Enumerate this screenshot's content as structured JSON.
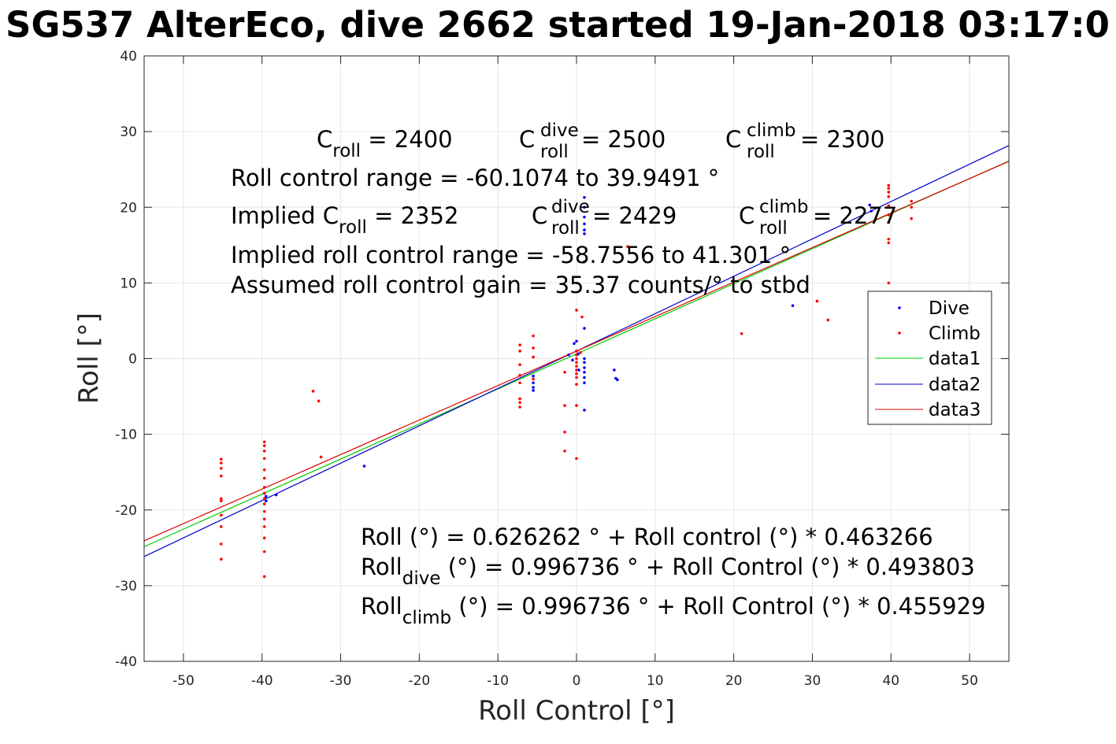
{
  "title": "SG537 AlterEco, dive 2662 started 19-Jan-2018 03:17:0",
  "colors": {
    "dive": "#0000ff",
    "climb": "#ff0000",
    "data1": "#00cc00",
    "data2": "#0000cc",
    "data3": "#dd0000",
    "grid": "#e6e6e6",
    "axis": "#262626"
  },
  "annotations": {
    "c_roll": {
      "C": "C",
      "sub": "roll",
      "val": " = 2400"
    },
    "c_roll_dive": {
      "C": "C",
      "sup": "dive",
      "sub": "roll",
      "val": " = 2500"
    },
    "c_roll_climb": {
      "C": "C",
      "sup": "climb",
      "sub": "roll",
      "val": " = 2300"
    },
    "roll_control_range": "Roll control range = -60.1074 to 39.9491 °",
    "implied_c_roll": {
      "pre": "Implied C",
      "sub": "roll",
      "val": " = 2352"
    },
    "implied_c_roll_dive": {
      "C": "C",
      "sup": "dive",
      "sub": "roll",
      "val": " = 2429"
    },
    "implied_c_roll_climb": {
      "C": "C",
      "sup": "climb",
      "sub": "roll",
      "val": " = 2277"
    },
    "implied_range": "Implied roll control range = -58.7556 to 41.301 °",
    "gain": "Assumed roll control gain = 35.37 counts/° to stbd",
    "fit_all": "Roll (°) = 0.626262 ° + Roll control (°) * 0.463266",
    "fit_dive": {
      "pre": "Roll",
      "sub": "dive",
      "post": " (°) = 0.996736 ° + Roll Control (°) * 0.493803"
    },
    "fit_climb": {
      "pre": "Roll",
      "sub": "climb",
      "post": " (°) = 0.996736 ° + Roll Control (°) * 0.455929"
    }
  },
  "chart_data": {
    "type": "scatter",
    "title": "SG537 AlterEco, dive 2662 started 19-Jan-2018 03:17:0",
    "xlabel": "Roll Control [°]",
    "ylabel": "Roll [°]",
    "xlim": [
      -55,
      55
    ],
    "ylim": [
      -40,
      40
    ],
    "xticks": [
      -50,
      -40,
      -30,
      -20,
      -10,
      0,
      10,
      20,
      30,
      40,
      50
    ],
    "yticks": [
      -40,
      -30,
      -20,
      -10,
      0,
      10,
      20,
      30,
      40
    ],
    "grid": true,
    "legend_position": "right",
    "series": [
      {
        "name": "Dive",
        "kind": "points",
        "color": "#0000ff",
        "points": [
          [
            -39.5,
            -18.2
          ],
          [
            -39.5,
            -18.8
          ],
          [
            -38.2,
            -18.0
          ],
          [
            -27.0,
            -14.2
          ],
          [
            -5.5,
            -2.3
          ],
          [
            -5.5,
            -3.2
          ],
          [
            -5.5,
            -3.8
          ],
          [
            -5.5,
            -4.2
          ],
          [
            -1.0,
            0.5
          ],
          [
            -0.5,
            -0.2
          ],
          [
            -0.3,
            2.0
          ],
          [
            0.0,
            2.3
          ],
          [
            0.2,
            0.6
          ],
          [
            0.3,
            -1.5
          ],
          [
            1.0,
            21.3
          ],
          [
            1.0,
            20.0
          ],
          [
            1.0,
            18.7
          ],
          [
            1.0,
            17.8
          ],
          [
            1.0,
            17.0
          ],
          [
            1.0,
            16.5
          ],
          [
            1.0,
            12.8
          ],
          [
            1.0,
            4.0
          ],
          [
            1.0,
            0.0
          ],
          [
            1.0,
            -0.5
          ],
          [
            1.0,
            -1.2
          ],
          [
            1.0,
            -1.8
          ],
          [
            1.0,
            -2.5
          ],
          [
            1.0,
            -3.2
          ],
          [
            1.0,
            -6.8
          ],
          [
            4.8,
            -1.5
          ],
          [
            5.0,
            -2.6
          ],
          [
            5.2,
            -2.8
          ],
          [
            27.5,
            7.0
          ],
          [
            37.3,
            20.3
          ],
          [
            37.5,
            19.5
          ]
        ]
      },
      {
        "name": "Climb",
        "kind": "points",
        "color": "#ff0000",
        "points": [
          [
            -45.2,
            -13.3
          ],
          [
            -45.2,
            -13.8
          ],
          [
            -45.2,
            -14.5
          ],
          [
            -45.2,
            -15.5
          ],
          [
            -45.2,
            -18.5
          ],
          [
            -45.2,
            -18.8
          ],
          [
            -45.2,
            -20.7
          ],
          [
            -45.2,
            -22.2
          ],
          [
            -45.2,
            -24.5
          ],
          [
            -45.2,
            -26.5
          ],
          [
            -39.7,
            -11.0
          ],
          [
            -39.7,
            -11.5
          ],
          [
            -39.7,
            -12.2
          ],
          [
            -39.7,
            -13.2
          ],
          [
            -39.7,
            -14.7
          ],
          [
            -39.7,
            -15.8
          ],
          [
            -39.7,
            -17.0
          ],
          [
            -39.7,
            -17.8
          ],
          [
            -39.7,
            -18.5
          ],
          [
            -39.7,
            -19.2
          ],
          [
            -39.7,
            -20.2
          ],
          [
            -39.7,
            -21.2
          ],
          [
            -39.7,
            -22.2
          ],
          [
            -39.7,
            -23.7
          ],
          [
            -39.7,
            -25.5
          ],
          [
            -39.7,
            -28.8
          ],
          [
            -33.5,
            -4.3
          ],
          [
            -32.8,
            -5.6
          ],
          [
            -32.5,
            -13.0
          ],
          [
            -7.2,
            1.8
          ],
          [
            -7.2,
            1.0
          ],
          [
            -7.2,
            -0.8
          ],
          [
            -7.2,
            -2.2
          ],
          [
            -7.2,
            -3.2
          ],
          [
            -7.2,
            -5.3
          ],
          [
            -7.2,
            -5.8
          ],
          [
            -7.2,
            -6.4
          ],
          [
            -5.5,
            3.0
          ],
          [
            -5.5,
            1.4
          ],
          [
            -5.5,
            0.2
          ],
          [
            -5.5,
            -2.7
          ],
          [
            -1.5,
            -1.8
          ],
          [
            -1.5,
            -6.2
          ],
          [
            -1.5,
            -9.7
          ],
          [
            -1.5,
            -12.2
          ],
          [
            0.0,
            6.4
          ],
          [
            0.0,
            1.0
          ],
          [
            0.0,
            0.5
          ],
          [
            0.0,
            0.0
          ],
          [
            0.0,
            -0.5
          ],
          [
            0.0,
            -1.0
          ],
          [
            0.0,
            -1.5
          ],
          [
            0.0,
            -2.0
          ],
          [
            0.0,
            -2.5
          ],
          [
            0.0,
            -3.4
          ],
          [
            0.0,
            -6.2
          ],
          [
            0.0,
            -13.2
          ],
          [
            0.7,
            5.5
          ],
          [
            0.5,
            0.8
          ],
          [
            6.5,
            14.8
          ],
          [
            21.0,
            3.3
          ],
          [
            30.6,
            7.6
          ],
          [
            32.0,
            5.1
          ],
          [
            39.7,
            22.9
          ],
          [
            39.7,
            22.5
          ],
          [
            39.7,
            22.0
          ],
          [
            39.7,
            21.4
          ],
          [
            39.7,
            20.2
          ],
          [
            39.7,
            19.0
          ],
          [
            39.7,
            18.0
          ],
          [
            39.7,
            15.8
          ],
          [
            39.7,
            15.3
          ],
          [
            39.7,
            10.0
          ],
          [
            42.6,
            20.8
          ],
          [
            42.6,
            20.0
          ],
          [
            42.6,
            18.5
          ]
        ]
      },
      {
        "name": "data1",
        "kind": "line",
        "color": "#00cc00",
        "x": [
          -55,
          55
        ],
        "y": [
          -24.85,
          26.11
        ]
      },
      {
        "name": "data2",
        "kind": "line",
        "color": "#0000cc",
        "x": [
          -55,
          55
        ],
        "y": [
          -26.16,
          28.16
        ]
      },
      {
        "name": "data3",
        "kind": "line",
        "color": "#dd0000",
        "x": [
          -55,
          55
        ],
        "y": [
          -24.08,
          26.07
        ]
      }
    ]
  }
}
